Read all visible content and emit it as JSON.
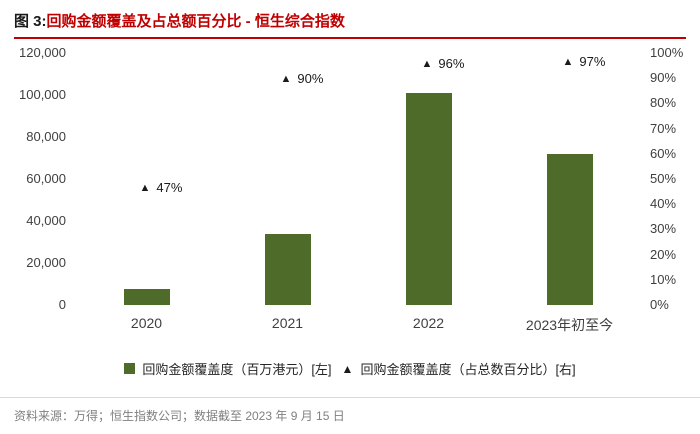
{
  "header": {
    "title_prefix": "图 3:",
    "title_main": "回购金额覆盖及占总额百分比 - 恒生综合指数",
    "accent_color": "#c00000"
  },
  "chart_data": {
    "type": "bar",
    "title": "图 3:回购金额覆盖及占总额百分比 - 恒生综合指数",
    "categories": [
      "2020",
      "2021",
      "2022",
      "2023年初至今"
    ],
    "series": [
      {
        "name": "回购金额覆盖度（百万港元）[左]",
        "type": "bar",
        "axis": "left",
        "values": [
          7500,
          34000,
          101000,
          72000
        ],
        "color": "#4e6b2a"
      },
      {
        "name": "回购金额覆盖度（占总数百分比）[右]",
        "type": "marker",
        "axis": "right",
        "values": [
          47,
          90,
          96,
          97
        ],
        "labels": [
          "47%",
          "90%",
          "96%",
          "97%"
        ],
        "color": "#1a1a1a"
      }
    ],
    "left_axis": {
      "min": 0,
      "max": 120000,
      "ticks": [
        0,
        20000,
        40000,
        60000,
        80000,
        100000,
        120000
      ],
      "tick_labels": [
        "0",
        "20,000",
        "40,000",
        "60,000",
        "80,000",
        "100,000",
        "120,000"
      ]
    },
    "right_axis": {
      "min": 0,
      "max": 100,
      "ticks": [
        0,
        10,
        20,
        30,
        40,
        50,
        60,
        70,
        80,
        90,
        100
      ],
      "tick_labels": [
        "0%",
        "10%",
        "20%",
        "30%",
        "40%",
        "50%",
        "60%",
        "70%",
        "80%",
        "90%",
        "100%"
      ]
    },
    "grid": false,
    "legend_position": "bottom"
  },
  "legend": {
    "items": [
      {
        "marker": "square",
        "label": "回购金额覆盖度（百万港元）[左]"
      },
      {
        "marker": "triangle",
        "label": "回购金额覆盖度（占总数百分比）[右]"
      }
    ]
  },
  "footer": {
    "source": "资料来源：万得；恒生指数公司；数据截至 2023 年 9 月 15 日"
  }
}
